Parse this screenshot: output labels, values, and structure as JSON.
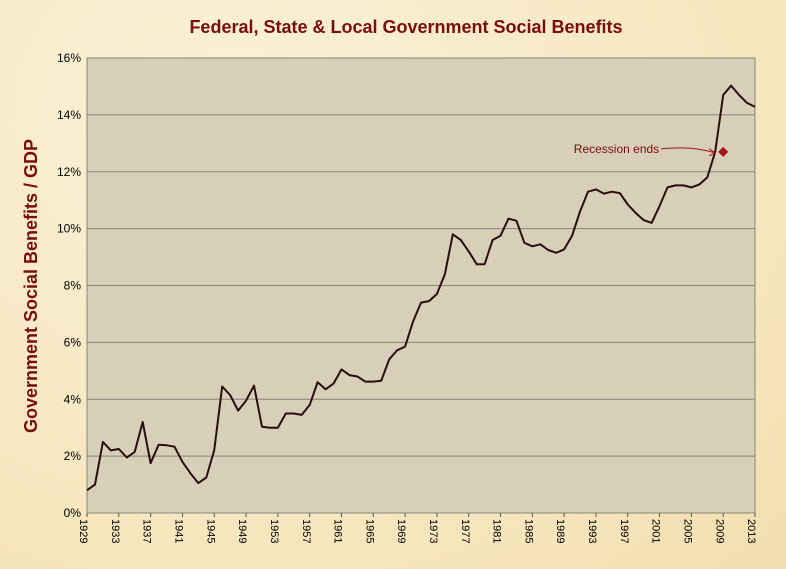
{
  "chart_data": {
    "type": "line",
    "title": "Federal, State & Local Government  Social Benefits",
    "ylabel": "Government  Social  Benefits / GDP",
    "xlabel": "",
    "ylim": [
      0,
      16
    ],
    "xlim": [
      1929,
      2013
    ],
    "y_ticks": [
      "0%",
      "2%",
      "4%",
      "6%",
      "8%",
      "10%",
      "12%",
      "14%",
      "16%"
    ],
    "x_ticks": [
      "1929",
      "1933",
      "1937",
      "1941",
      "1945",
      "1949",
      "1953",
      "1957",
      "1961",
      "1965",
      "1969",
      "1973",
      "1977",
      "1981",
      "1985",
      "1989",
      "1993",
      "1997",
      "2001",
      "2005",
      "2009",
      "2013"
    ],
    "grid": true,
    "legend": "none",
    "annotation": {
      "text": "Recession ends",
      "x": 2009,
      "y": 12.7
    },
    "series": [
      {
        "x": [
          1929,
          1930,
          1931,
          1932,
          1933,
          1934,
          1935,
          1936,
          1937,
          1938,
          1939,
          1940,
          1941,
          1942,
          1943,
          1944,
          1945,
          1946,
          1947,
          1948,
          1949,
          1950,
          1951,
          1952,
          1953,
          1954,
          1955,
          1956,
          1957,
          1958,
          1959,
          1960,
          1961,
          1962,
          1963,
          1964,
          1965,
          1966,
          1967,
          1968,
          1969,
          1970,
          1971,
          1972,
          1973,
          1974,
          1975,
          1976,
          1977,
          1978,
          1979,
          1980,
          1981,
          1982,
          1983,
          1984,
          1985,
          1986,
          1987,
          1988,
          1989,
          1990,
          1991,
          1992,
          1993,
          1994,
          1995,
          1996,
          1997,
          1998,
          1999,
          2000,
          2001,
          2002,
          2003,
          2004,
          2005,
          2006,
          2007,
          2008,
          2009,
          2010,
          2011,
          2012,
          2013
        ],
        "values": [
          0.8,
          1.0,
          2.5,
          2.2,
          2.25,
          1.95,
          2.15,
          3.2,
          1.75,
          2.4,
          2.38,
          2.33,
          1.8,
          1.4,
          1.05,
          1.25,
          2.2,
          4.45,
          4.15,
          3.6,
          3.95,
          4.48,
          3.03,
          3.0,
          3.0,
          3.5,
          3.5,
          3.45,
          3.8,
          4.6,
          4.35,
          4.55,
          5.05,
          4.85,
          4.8,
          4.62,
          4.62,
          4.65,
          5.4,
          5.72,
          5.85,
          6.73,
          7.4,
          7.45,
          7.7,
          8.4,
          9.8,
          9.6,
          9.2,
          8.75,
          8.75,
          9.6,
          9.75,
          10.35,
          10.28,
          9.5,
          9.38,
          9.45,
          9.25,
          9.15,
          9.27,
          9.75,
          10.6,
          11.3,
          11.38,
          11.23,
          11.3,
          11.25,
          10.85,
          10.55,
          10.3,
          10.2,
          10.8,
          11.45,
          11.52,
          11.52,
          11.45,
          11.55,
          11.8,
          12.7,
          14.7,
          15.03,
          14.7,
          14.42,
          14.28
        ]
      }
    ],
    "colors": {
      "line": "#2a0e0e",
      "plot_bg": "#d7cfb8",
      "title": "#7a0d0d",
      "marker": "#a01414"
    }
  }
}
